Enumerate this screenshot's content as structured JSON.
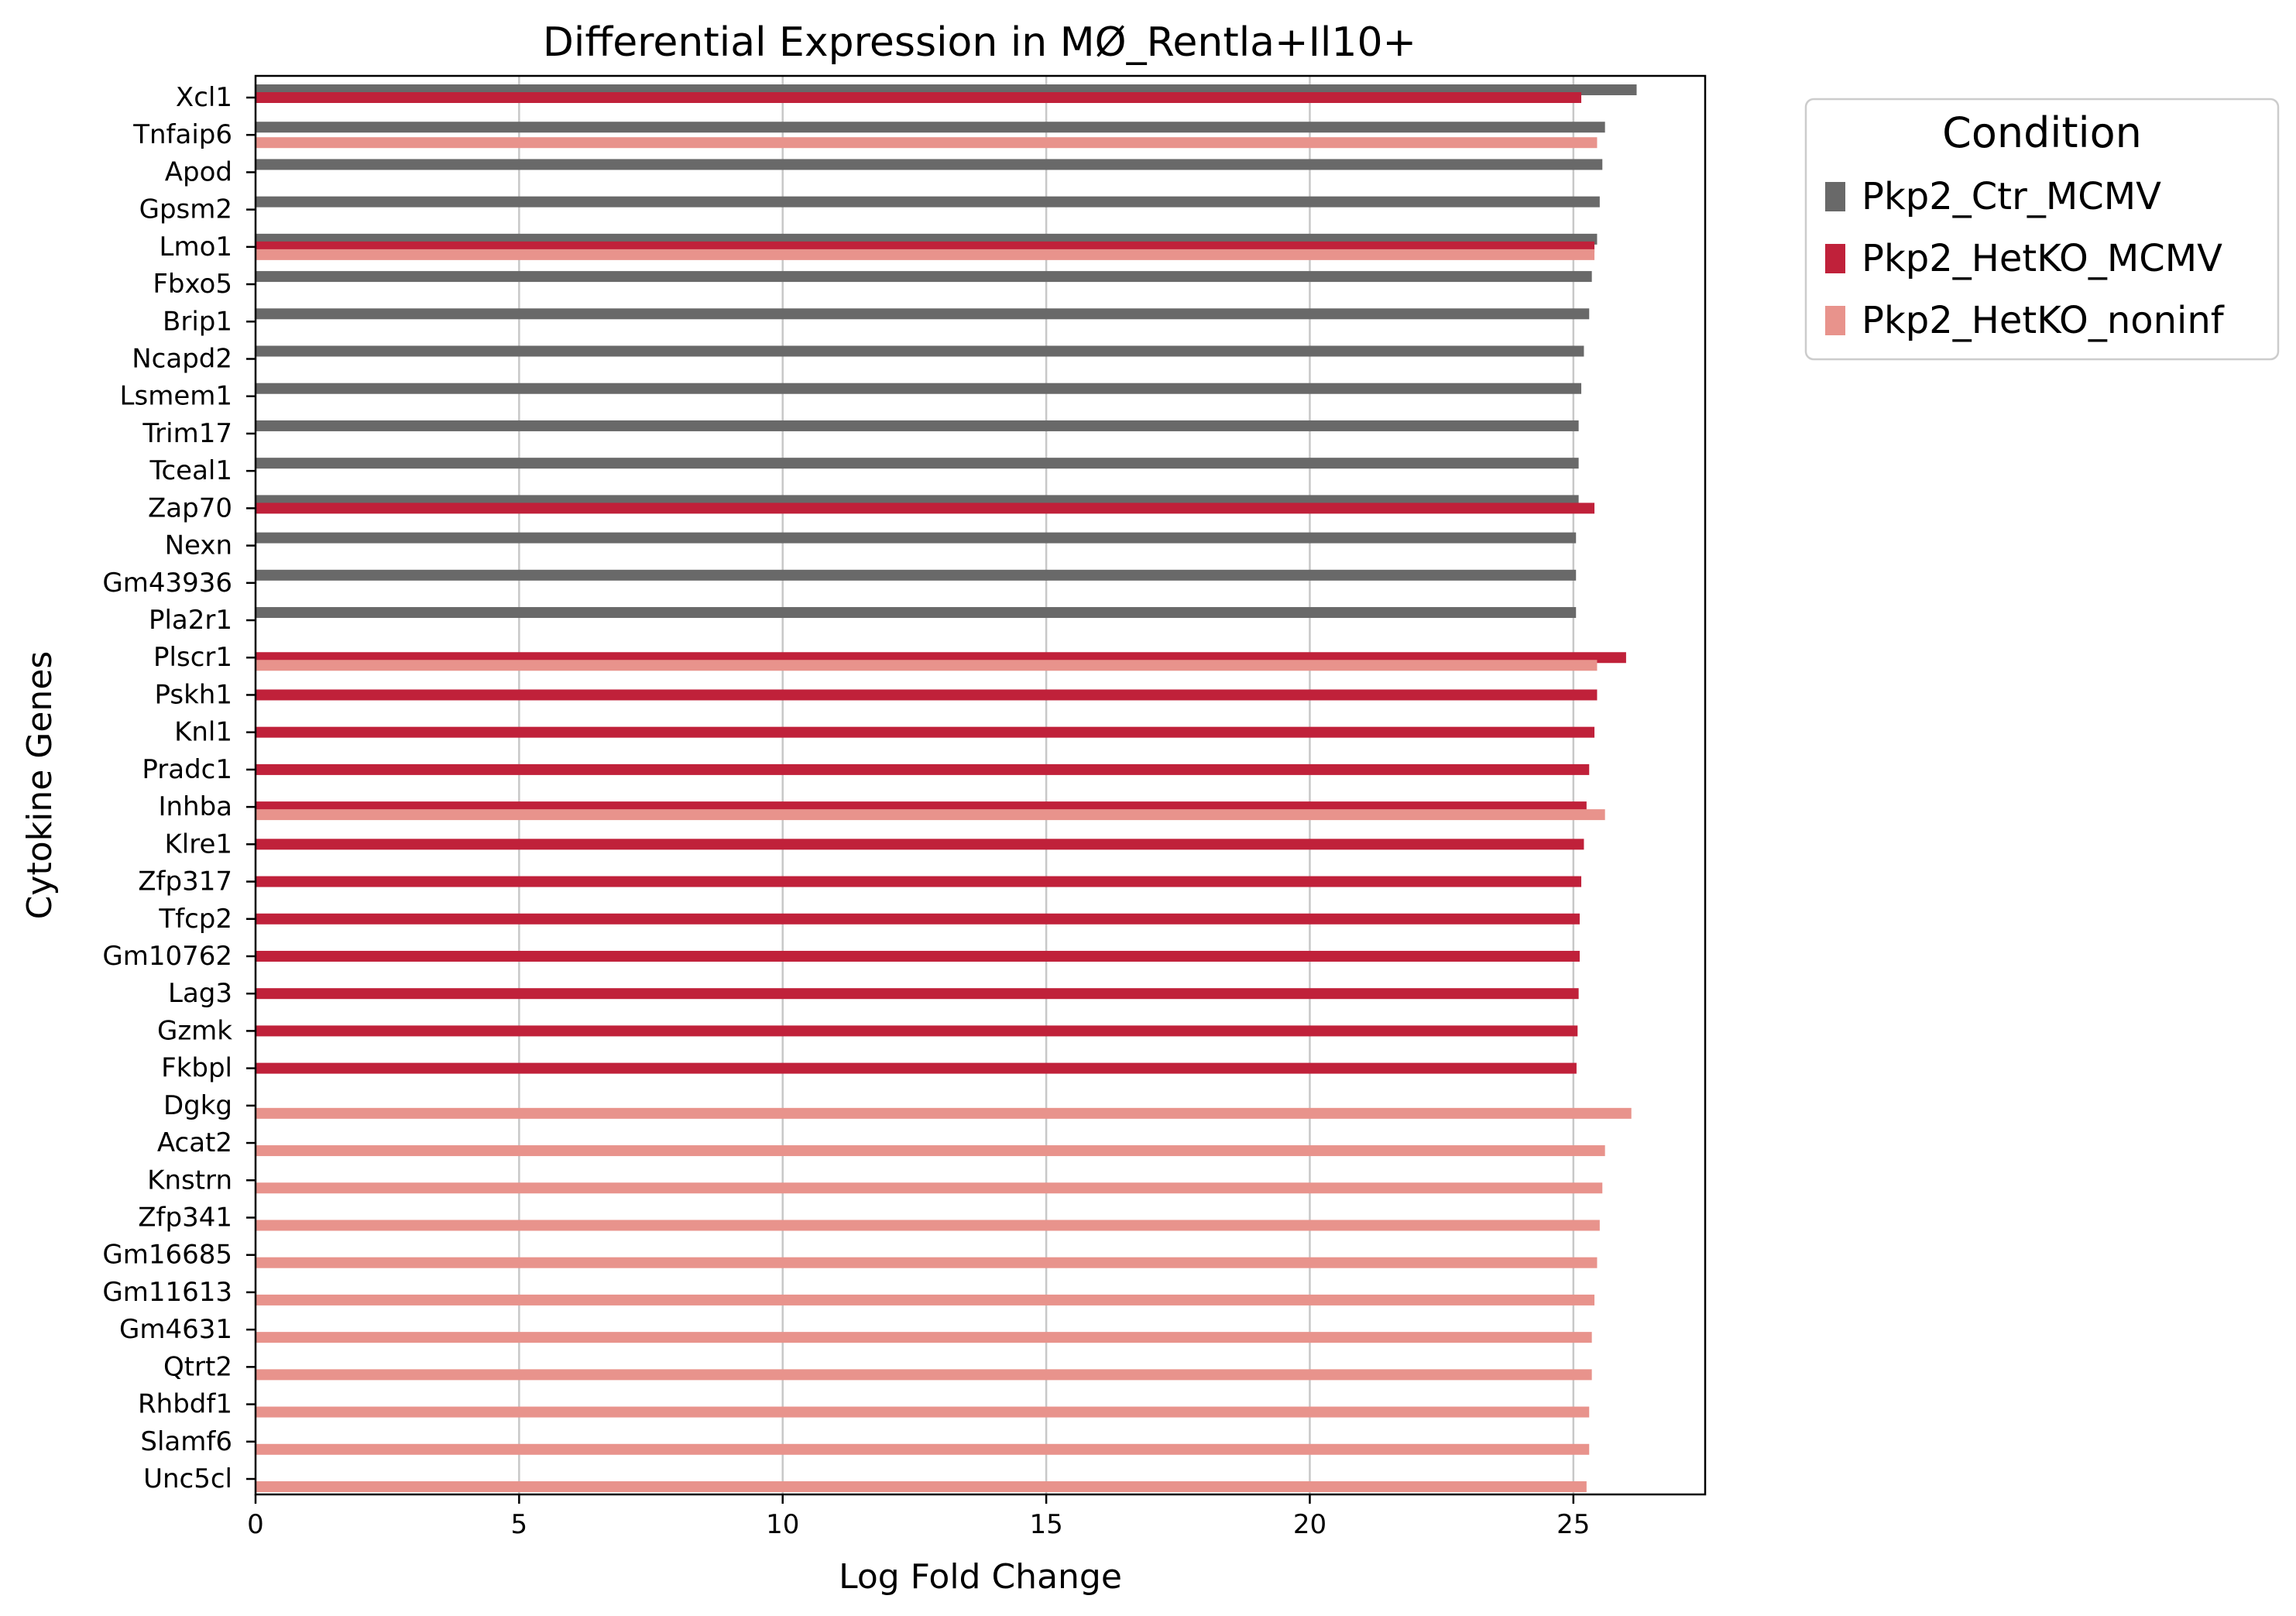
{
  "chart_data": {
    "type": "bar",
    "orientation": "horizontal",
    "title": "Differential Expression in MØ_Rentla+Il10+",
    "xlabel": "Log Fold Change",
    "ylabel": "Cytokine Genes",
    "xlim": [
      0,
      27.5
    ],
    "xticks": [
      0,
      5,
      10,
      15,
      20,
      25
    ],
    "grid": "vertical",
    "legend": {
      "title": "Condition",
      "position": "outside-top-right"
    },
    "categories": [
      "Xcl1",
      "Tnfaip6",
      "Apod",
      "Gpsm2",
      "Lmo1",
      "Fbxo5",
      "Brip1",
      "Ncapd2",
      "Lsmem1",
      "Trim17",
      "Tceal1",
      "Zap70",
      "Nexn",
      "Gm43936",
      "Pla2r1",
      "Plscr1",
      "Pskh1",
      "Knl1",
      "Pradc1",
      "Inhba",
      "Klre1",
      "Zfp317",
      "Tfcp2",
      "Gm10762",
      "Lag3",
      "Gzmk",
      "Fkbpl",
      "Dgkg",
      "Acat2",
      "Knstrn",
      "Zfp341",
      "Gm16685",
      "Gm11613",
      "Gm4631",
      "Qtrt2",
      "Rhbdf1",
      "Slamf6",
      "Unc5cl"
    ],
    "series": [
      {
        "name": "Pkp2_Ctr_MCMV",
        "color": "#696969",
        "values": [
          26.2,
          25.6,
          25.55,
          25.5,
          25.45,
          25.35,
          25.3,
          25.2,
          25.15,
          25.1,
          25.1,
          25.1,
          25.05,
          25.05,
          25.05,
          null,
          null,
          null,
          null,
          null,
          null,
          null,
          null,
          null,
          null,
          null,
          null,
          null,
          null,
          null,
          null,
          null,
          null,
          null,
          null,
          null,
          null,
          null
        ]
      },
      {
        "name": "Pkp2_HetKO_MCMV",
        "color": "#C0213A",
        "values": [
          25.15,
          null,
          null,
          null,
          25.4,
          null,
          null,
          null,
          null,
          null,
          null,
          25.4,
          null,
          null,
          null,
          26.0,
          25.45,
          25.4,
          25.3,
          25.25,
          25.2,
          25.15,
          25.12,
          25.12,
          25.1,
          25.08,
          25.06,
          null,
          null,
          null,
          null,
          null,
          null,
          null,
          null,
          null,
          null,
          null
        ]
      },
      {
        "name": "Pkp2_HetKO_noninf",
        "color": "#E8938C",
        "values": [
          null,
          25.45,
          null,
          null,
          25.4,
          null,
          null,
          null,
          null,
          null,
          null,
          null,
          null,
          null,
          null,
          25.45,
          null,
          null,
          null,
          25.6,
          null,
          null,
          null,
          null,
          null,
          null,
          null,
          26.1,
          25.6,
          25.55,
          25.5,
          25.45,
          25.4,
          25.35,
          25.35,
          25.3,
          25.3,
          25.25
        ]
      }
    ]
  }
}
